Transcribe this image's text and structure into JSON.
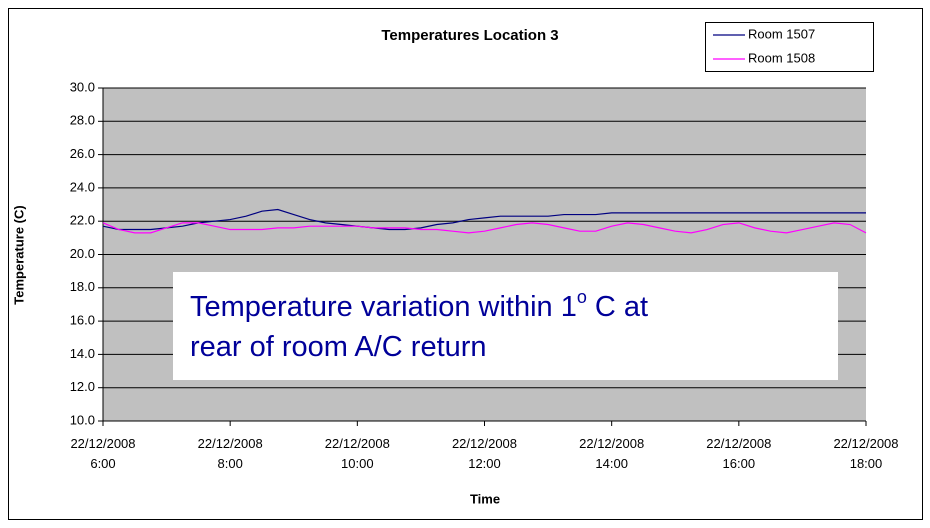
{
  "chart_data": {
    "type": "line",
    "title": "Temperatures Location 3",
    "x_label": "Time",
    "y_label": "Temperature (C)",
    "annotation": [
      "Temperature variation within 1",
      "o",
      " C at",
      "rear of room A/C return"
    ],
    "x": [
      6,
      6.25,
      6.5,
      6.75,
      7,
      7.25,
      7.5,
      7.75,
      8,
      8.25,
      8.5,
      8.75,
      9,
      9.25,
      9.5,
      9.75,
      10,
      10.25,
      10.5,
      10.75,
      11,
      11.25,
      11.5,
      11.75,
      12,
      12.25,
      12.5,
      12.75,
      13,
      13.25,
      13.5,
      13.75,
      14,
      14.25,
      14.5,
      14.75,
      15,
      15.25,
      15.5,
      15.75,
      16,
      16.25,
      16.5,
      16.75,
      17,
      17.25,
      17.5,
      17.75,
      18
    ],
    "series": [
      {
        "name": "Room 1507",
        "color": "#000080",
        "values": [
          21.7,
          21.5,
          21.5,
          21.5,
          21.6,
          21.7,
          21.9,
          22.0,
          22.1,
          22.3,
          22.6,
          22.7,
          22.4,
          22.1,
          21.9,
          21.8,
          21.7,
          21.6,
          21.5,
          21.5,
          21.6,
          21.8,
          21.9,
          22.1,
          22.2,
          22.3,
          22.3,
          22.3,
          22.3,
          22.4,
          22.4,
          22.4,
          22.5,
          22.5,
          22.5,
          22.5,
          22.5,
          22.5,
          22.5,
          22.5,
          22.5,
          22.5,
          22.5,
          22.5,
          22.5,
          22.5,
          22.5,
          22.5,
          22.5
        ]
      },
      {
        "name": "Room 1508",
        "color": "#ff00ff",
        "values": [
          21.9,
          21.5,
          21.3,
          21.3,
          21.6,
          21.9,
          21.9,
          21.7,
          21.5,
          21.5,
          21.5,
          21.6,
          21.6,
          21.7,
          21.7,
          21.7,
          21.7,
          21.6,
          21.6,
          21.6,
          21.5,
          21.5,
          21.4,
          21.3,
          21.4,
          21.6,
          21.8,
          21.9,
          21.8,
          21.6,
          21.4,
          21.4,
          21.7,
          21.9,
          21.8,
          21.6,
          21.4,
          21.3,
          21.5,
          21.8,
          21.9,
          21.6,
          21.4,
          21.3,
          21.5,
          21.7,
          21.9,
          21.8,
          21.3
        ]
      }
    ],
    "xlim": [
      6,
      18
    ],
    "xticks": [
      {
        "value": 6,
        "label": "22/12/2008 6:00"
      },
      {
        "value": 8,
        "label": "22/12/2008 8:00"
      },
      {
        "value": 10,
        "label": "22/12/2008 10:00"
      },
      {
        "value": 12,
        "label": "22/12/2008 12:00"
      },
      {
        "value": 14,
        "label": "22/12/2008 14:00"
      },
      {
        "value": 16,
        "label": "22/12/2008 16:00"
      },
      {
        "value": 18,
        "label": "22/12/2008 18:00"
      }
    ],
    "ylim": [
      10,
      30
    ],
    "yticks": [
      {
        "value": 10,
        "label": "10.0"
      },
      {
        "value": 12,
        "label": "12.0"
      },
      {
        "value": 14,
        "label": "14.0"
      },
      {
        "value": 16,
        "label": "16.0"
      },
      {
        "value": 18,
        "label": "18.0"
      },
      {
        "value": 20,
        "label": "20.0"
      },
      {
        "value": 22,
        "label": "22.0"
      },
      {
        "value": 24,
        "label": "24.0"
      },
      {
        "value": 26,
        "label": "26.0"
      },
      {
        "value": 28,
        "label": "28.0"
      },
      {
        "value": 30,
        "label": "30.0"
      }
    ],
    "grid": true,
    "legend": "top-right",
    "plot_background": "#c0c0c0"
  }
}
